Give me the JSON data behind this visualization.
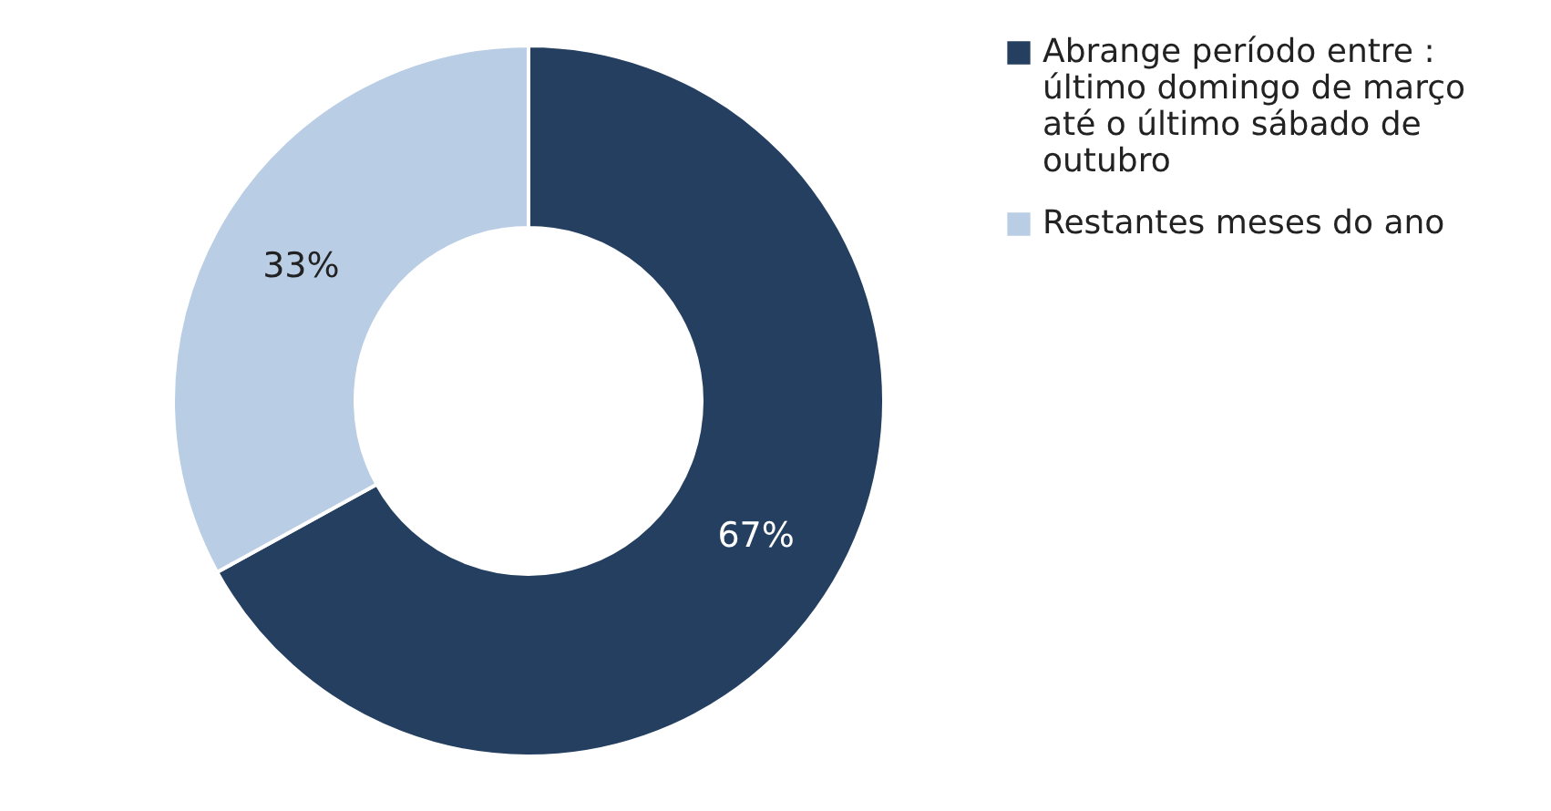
{
  "chart_data": {
    "type": "donut",
    "categories": [
      "Abrange período entre : último domingo de março até o último sábado de outubro",
      "Restantes meses do ano"
    ],
    "values": [
      67,
      33
    ],
    "colors": [
      "#243f60",
      "#b9cde5"
    ],
    "value_labels": [
      "67%",
      "33%"
    ],
    "legend": "right"
  }
}
